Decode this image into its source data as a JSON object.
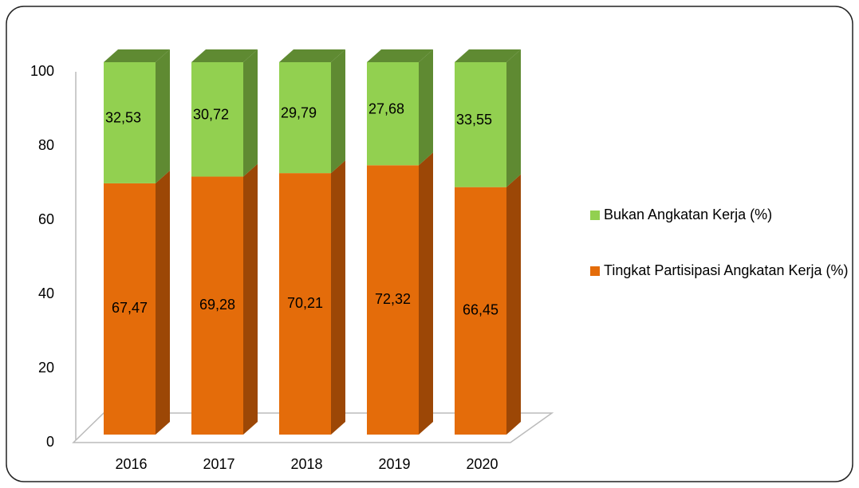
{
  "chart_data": {
    "type": "bar",
    "stacked": true,
    "categories": [
      "2016",
      "2017",
      "2018",
      "2019",
      "2020"
    ],
    "series": [
      {
        "name": "Tingkat Partisipasi Angkatan Kerja (%)",
        "color": "#e46c0a",
        "side_color": "#9c4706",
        "values": [
          67.47,
          69.28,
          70.21,
          72.32,
          66.45
        ],
        "value_labels": [
          "67,47",
          "69,28",
          "70,21",
          "72,32",
          "66,45"
        ]
      },
      {
        "name": "Bukan Angkatan Kerja (%)",
        "color": "#92d050",
        "side_color": "#5f8a32",
        "values": [
          32.53,
          30.72,
          29.79,
          27.68,
          33.55
        ],
        "value_labels": [
          "32,53",
          "30,72",
          "29,79",
          "27,68",
          "33,55"
        ]
      }
    ],
    "ylim": [
      0,
      100
    ],
    "yticks": [
      0,
      20,
      40,
      60,
      80,
      100
    ],
    "legend": "right"
  }
}
